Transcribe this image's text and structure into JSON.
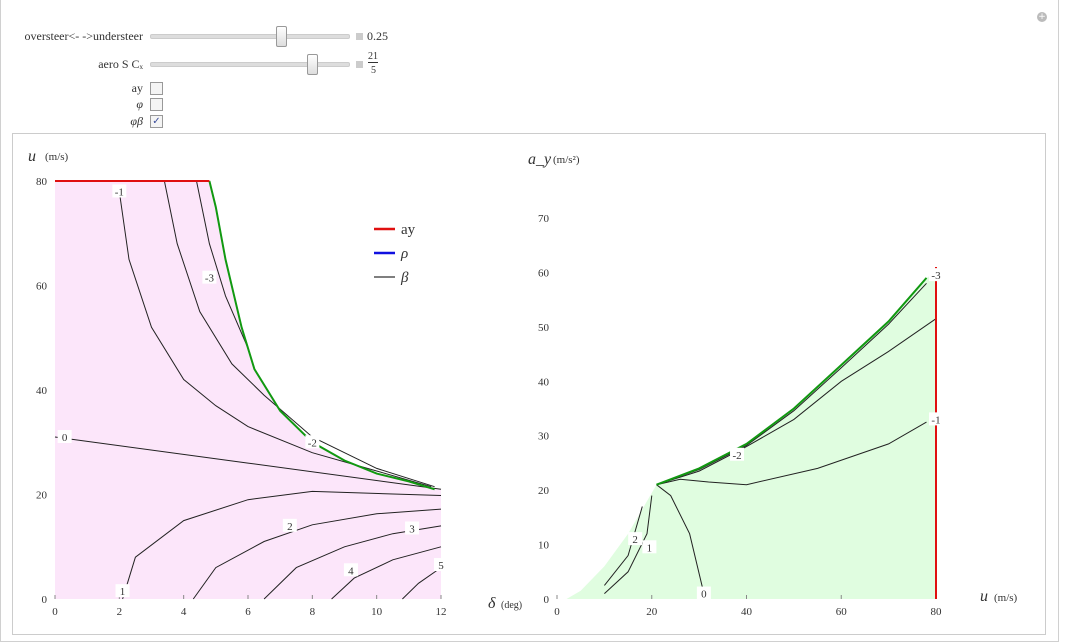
{
  "controls": {
    "slider1": {
      "label": "oversteer<- ->understeer",
      "value": "0.25",
      "fraction": 0.6
    },
    "slider2": {
      "label": "aero S Cₓ",
      "value_num": "21",
      "value_den": "5",
      "fraction": 0.8
    },
    "checkboxes": [
      {
        "label": "ay",
        "checked": false
      },
      {
        "label": "φ",
        "checked": false
      },
      {
        "label": "φβ",
        "checked": true
      }
    ]
  },
  "colors": {
    "red": "#e01010",
    "blue": "#1010e0",
    "green": "#119911",
    "pink": "#fce6fa",
    "lightgreen": "#e0fde0"
  },
  "chart_data": [
    {
      "type": "line",
      "title": "",
      "xlabel": "δ (deg)",
      "ylabel": "u (m/s)",
      "xlim": [
        0,
        12
      ],
      "ylim": [
        0,
        80
      ],
      "xticks": [
        "0",
        "2",
        "4",
        "6",
        "8",
        "10",
        "12"
      ],
      "yticks": [
        "0",
        "20",
        "40",
        "60",
        "80"
      ],
      "legend": {
        "placement": "top-right",
        "entries": [
          "ay",
          "ρ",
          "β"
        ]
      },
      "boundary_red": [
        [
          0,
          80
        ],
        [
          4.8,
          80
        ]
      ],
      "boundary_green": [
        [
          4.8,
          80
        ],
        [
          5.0,
          75
        ],
        [
          5.3,
          65
        ],
        [
          5.8,
          52
        ],
        [
          6.2,
          44
        ],
        [
          7,
          36
        ],
        [
          8,
          30
        ],
        [
          9,
          26.5
        ],
        [
          10,
          24
        ],
        [
          11,
          22.5
        ],
        [
          11.8,
          21
        ]
      ],
      "contours": [
        {
          "label": "-1",
          "at": [
            2,
            78
          ],
          "points": [
            [
              2,
              78
            ],
            [
              2.3,
              65
            ],
            [
              3,
              52
            ],
            [
              4,
              42
            ],
            [
              5,
              37
            ],
            [
              6,
              33
            ],
            [
              8,
              28
            ],
            [
              10,
              24.5
            ],
            [
              11.7,
              21.5
            ]
          ]
        },
        {
          "label": "-2",
          "at": [
            8,
            30
          ],
          "points": [
            [
              3.4,
              80
            ],
            [
              3.8,
              68
            ],
            [
              4.5,
              55
            ],
            [
              5.5,
              45
            ],
            [
              6.5,
              39
            ],
            [
              8,
              31
            ],
            [
              10,
              25
            ],
            [
              11.8,
              21.5
            ]
          ]
        },
        {
          "label": "-3",
          "at": [
            4.8,
            61.5
          ],
          "points": [
            [
              4.4,
              80
            ],
            [
              4.8,
              68
            ],
            [
              5.3,
              58
            ],
            [
              6,
              48
            ],
            [
              6.2,
              44
            ]
          ]
        },
        {
          "label": "0",
          "at": [
            0.3,
            31
          ],
          "points": [
            [
              0,
              31
            ],
            [
              6,
              26
            ],
            [
              12,
              21
            ]
          ]
        },
        {
          "label": "1",
          "at": [
            2.1,
            1.5
          ],
          "points": [
            [
              2.1,
              0
            ],
            [
              2.5,
              8
            ],
            [
              4,
              15
            ],
            [
              6,
              19
            ],
            [
              8,
              20.6
            ],
            [
              12,
              19.8
            ]
          ]
        },
        {
          "label": "2",
          "at": [
            7.3,
            14
          ],
          "points": [
            [
              4.3,
              0
            ],
            [
              5,
              6
            ],
            [
              6.5,
              11
            ],
            [
              8,
              14.2
            ],
            [
              10,
              16.3
            ],
            [
              12,
              17.2
            ]
          ]
        },
        {
          "label": "3",
          "at": [
            11.1,
            13.5
          ],
          "points": [
            [
              6.5,
              0
            ],
            [
              7.5,
              6
            ],
            [
              9,
              10
            ],
            [
              10.5,
              12.5
            ],
            [
              12,
              14
            ]
          ]
        },
        {
          "label": "4",
          "at": [
            9.2,
            5.5
          ],
          "points": [
            [
              8.6,
              0
            ],
            [
              9.3,
              4
            ],
            [
              10.5,
              7.5
            ],
            [
              12,
              10
            ]
          ]
        },
        {
          "label": "5",
          "at": [
            12,
            6.5
          ],
          "points": [
            [
              10.8,
              0
            ],
            [
              11.3,
              3
            ],
            [
              12,
              6
            ]
          ]
        }
      ]
    },
    {
      "type": "line",
      "title": "",
      "xlabel": "u (m/s)",
      "ylabel": "a_y (m/s²)",
      "xlim": [
        0,
        80
      ],
      "ylim": [
        0,
        70
      ],
      "xticks": [
        "0",
        "20",
        "40",
        "60",
        "80"
      ],
      "yticks": [
        "0",
        "10",
        "20",
        "30",
        "40",
        "50",
        "60",
        "70"
      ],
      "boundary_red": [
        [
          80,
          0
        ],
        [
          80,
          61
        ]
      ],
      "boundary_green": [
        [
          21,
          21
        ],
        [
          30,
          24
        ],
        [
          40,
          28.5
        ],
        [
          50,
          35
        ],
        [
          60,
          43
        ],
        [
          70,
          51
        ],
        [
          78,
          59
        ]
      ],
      "envelope": [
        [
          2,
          0
        ],
        [
          5,
          1.5
        ],
        [
          10,
          6
        ],
        [
          15,
          12
        ],
        [
          21,
          21
        ]
      ],
      "contours": [
        {
          "label": "-3",
          "at": [
            80,
            59.5
          ],
          "points": [
            [
              21,
              21
            ],
            [
              30,
              23.8
            ],
            [
              40,
              28.2
            ],
            [
              50,
              34.6
            ],
            [
              60,
              42.5
            ],
            [
              70,
              50.5
            ],
            [
              78,
              58
            ]
          ]
        },
        {
          "label": "-2",
          "at": [
            38,
            26.5
          ],
          "points": [
            [
              21,
              21
            ],
            [
              30,
              23.5
            ],
            [
              40,
              28
            ],
            [
              50,
              33
            ],
            [
              60,
              40
            ],
            [
              70,
              45.5
            ],
            [
              80,
              51.5
            ]
          ]
        },
        {
          "label": "-1",
          "at": [
            80,
            33
          ],
          "points": [
            [
              21,
              21
            ],
            [
              26,
              22
            ],
            [
              32,
              21.5
            ],
            [
              40,
              21
            ],
            [
              55,
              24
            ],
            [
              70,
              28.5
            ],
            [
              78,
              32.5
            ]
          ]
        },
        {
          "label": "0",
          "at": [
            31,
            1
          ],
          "points": [
            [
              21,
              21
            ],
            [
              24,
              19
            ],
            [
              28,
              12
            ],
            [
              31,
              1
            ]
          ]
        },
        {
          "label": "1",
          "at": [
            19.5,
            9.5
          ],
          "points": [
            [
              10,
              1
            ],
            [
              15,
              5
            ],
            [
              19,
              12
            ],
            [
              20,
              19
            ]
          ]
        },
        {
          "label": "2",
          "at": [
            16.5,
            11
          ],
          "points": [
            [
              10,
              2.5
            ],
            [
              15,
              8
            ],
            [
              18,
              17
            ]
          ]
        }
      ]
    }
  ]
}
